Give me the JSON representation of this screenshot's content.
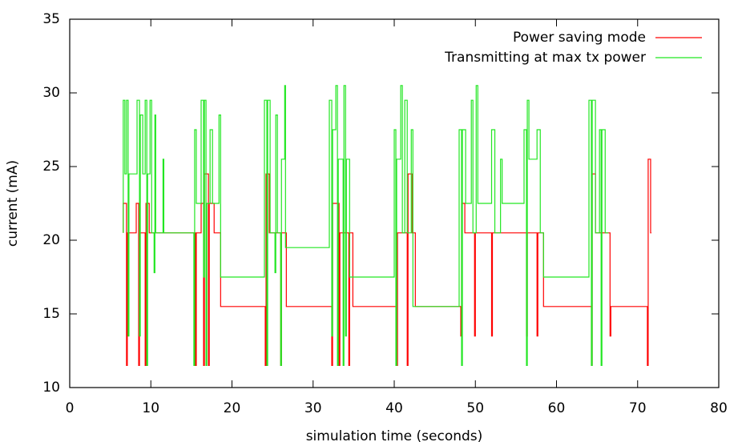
{
  "chart_data": {
    "type": "line",
    "x_label": "simulation time (seconds)",
    "y_label": "current (mA)",
    "xlim": [
      0,
      80
    ],
    "xticks": [
      0,
      10,
      20,
      30,
      40,
      50,
      60,
      70,
      80
    ],
    "ylim": [
      10,
      35
    ],
    "yticks": [
      10,
      15,
      20,
      25,
      30,
      35
    ],
    "legend": "upper right",
    "steps": true,
    "series": [
      {
        "name": "Power saving mode",
        "color": "#ff0000",
        "x": [
          6.6,
          6.6,
          7.0,
          7.0,
          7.1,
          7.1,
          8.2,
          8.2,
          8.5,
          8.5,
          8.6,
          8.6,
          9.3,
          9.3,
          9.4,
          9.4,
          9.8,
          9.8,
          15.5,
          15.5,
          15.6,
          15.6,
          16.2,
          16.2,
          16.5,
          16.5,
          16.6,
          16.6,
          17.1,
          17.1,
          17.2,
          17.2,
          17.8,
          17.8,
          18.6,
          18.6,
          24.1,
          24.1,
          24.2,
          24.2,
          24.6,
          24.6,
          26.0,
          26.0,
          26.1,
          26.1,
          26.7,
          26.7,
          32.3,
          32.3,
          32.4,
          32.4,
          33.2,
          33.2,
          33.3,
          33.3,
          34.4,
          34.4,
          34.5,
          34.5,
          34.9,
          34.9,
          40.3,
          40.3,
          40.4,
          40.4,
          41.6,
          41.6,
          41.7,
          41.7,
          42.2,
          42.2,
          42.6,
          42.6,
          48.2,
          48.2,
          48.3,
          48.3,
          48.7,
          48.7,
          49.9,
          49.9,
          50.0,
          50.0,
          52.0,
          52.0,
          52.1,
          52.1,
          56.3,
          56.3,
          56.4,
          56.4,
          57.6,
          57.6,
          57.7,
          57.7,
          58.4,
          58.4,
          64.3,
          64.3,
          64.4,
          64.4,
          64.8,
          64.8,
          66.6,
          66.6,
          66.7,
          66.7,
          71.2,
          71.2,
          71.3,
          71.3,
          71.6,
          71.6,
          71.7
        ],
        "values": [
          20.5,
          22.5,
          22.5,
          11.5,
          11.5,
          20.5,
          20.5,
          22.5,
          22.5,
          11.5,
          11.5,
          20.5,
          20.5,
          11.5,
          11.5,
          22.5,
          22.5,
          20.5,
          20.5,
          11.5,
          11.5,
          20.5,
          20.5,
          22.5,
          22.5,
          11.5,
          11.5,
          24.5,
          24.5,
          11.5,
          11.5,
          22.5,
          22.5,
          20.5,
          20.5,
          15.5,
          15.5,
          11.5,
          11.5,
          24.5,
          24.5,
          20.5,
          20.5,
          11.5,
          11.5,
          20.5,
          20.5,
          15.5,
          15.5,
          11.5,
          11.5,
          22.5,
          22.5,
          11.5,
          11.5,
          20.5,
          20.5,
          11.5,
          11.5,
          20.5,
          20.5,
          15.5,
          15.5,
          11.5,
          11.5,
          20.5,
          20.5,
          11.5,
          11.5,
          24.5,
          24.5,
          20.5,
          20.5,
          15.5,
          15.5,
          13.5,
          13.5,
          22.5,
          22.5,
          20.5,
          20.5,
          13.5,
          13.5,
          20.5,
          20.5,
          13.5,
          13.5,
          20.5,
          20.5,
          13.5,
          13.5,
          20.5,
          20.5,
          13.5,
          13.5,
          20.5,
          20.5,
          15.5,
          15.5,
          11.5,
          11.5,
          24.5,
          24.5,
          20.5,
          20.5,
          13.5,
          13.5,
          15.5,
          15.5,
          11.5,
          11.5,
          25.5,
          25.5,
          20.5,
          20.5
        ]
      },
      {
        "name": "Transmitting at max tx power",
        "color": "#22e622",
        "x": [
          6.6,
          6.6,
          6.8,
          6.8,
          7.0,
          7.0,
          7.2,
          7.2,
          7.3,
          7.3,
          8.3,
          8.3,
          8.6,
          8.6,
          8.7,
          8.7,
          9.0,
          9.0,
          9.3,
          9.3,
          9.5,
          9.5,
          9.6,
          9.6,
          9.9,
          9.9,
          10.1,
          10.1,
          10.4,
          10.4,
          10.5,
          10.5,
          10.6,
          10.6,
          11.5,
          11.5,
          11.6,
          11.6,
          15.3,
          15.3,
          15.4,
          15.4,
          15.6,
          15.6,
          16.2,
          16.2,
          16.5,
          16.5,
          16.6,
          16.6,
          16.8,
          16.8,
          16.9,
          16.9,
          17.3,
          17.3,
          17.6,
          17.6,
          18.4,
          18.4,
          18.6,
          18.6,
          24.0,
          24.0,
          24.3,
          24.3,
          24.4,
          24.4,
          24.7,
          24.7,
          25.3,
          25.3,
          25.4,
          25.4,
          25.6,
          25.6,
          26.0,
          26.0,
          26.1,
          26.1,
          26.5,
          26.5,
          26.6,
          26.6,
          32.0,
          32.0,
          32.3,
          32.3,
          32.4,
          32.4,
          32.8,
          32.8,
          33.0,
          33.0,
          33.1,
          33.1,
          33.7,
          33.7,
          33.8,
          33.8,
          34.0,
          34.0,
          34.1,
          34.1,
          34.5,
          34.5,
          40.0,
          40.0,
          40.2,
          40.2,
          40.3,
          40.3,
          40.8,
          40.8,
          41.0,
          41.0,
          41.3,
          41.3,
          41.6,
          41.6,
          42.1,
          42.1,
          42.3,
          42.3,
          48.0,
          48.0,
          48.3,
          48.3,
          48.4,
          48.4,
          48.8,
          48.8,
          49.5,
          49.5,
          49.7,
          49.7,
          50.1,
          50.1,
          50.3,
          50.3,
          52.0,
          52.0,
          52.4,
          52.4,
          53.1,
          53.1,
          53.3,
          53.3,
          56.0,
          56.0,
          56.3,
          56.3,
          56.4,
          56.4,
          56.6,
          56.6,
          57.6,
          57.6,
          58.0,
          58.0,
          58.4,
          58.4,
          64.0,
          64.0,
          64.3,
          64.3,
          64.4,
          64.4,
          64.8,
          64.8,
          65.3,
          65.3,
          65.5,
          65.5,
          65.6,
          65.6,
          66.0,
          66.0,
          66.4
        ],
        "values": [
          20.5,
          29.5,
          29.5,
          24.5,
          24.5,
          29.5,
          29.5,
          13.5,
          13.5,
          24.5,
          24.5,
          29.5,
          29.5,
          13.5,
          13.5,
          28.5,
          28.5,
          24.5,
          24.5,
          29.5,
          29.5,
          11.5,
          11.5,
          24.5,
          24.5,
          29.5,
          29.5,
          20.5,
          20.5,
          17.8,
          17.8,
          28.5,
          28.5,
          20.5,
          20.5,
          25.5,
          25.5,
          20.5,
          20.5,
          11.5,
          11.5,
          27.5,
          27.5,
          22.5,
          22.5,
          29.5,
          29.5,
          17.5,
          17.5,
          29.5,
          29.5,
          11.5,
          11.5,
          22.5,
          22.5,
          27.5,
          27.5,
          22.5,
          22.5,
          28.5,
          28.5,
          17.5,
          17.5,
          29.5,
          29.5,
          11.5,
          11.5,
          29.5,
          29.5,
          20.5,
          20.5,
          17.8,
          17.8,
          28.5,
          28.5,
          20.5,
          20.5,
          11.5,
          11.5,
          25.5,
          25.5,
          30.5,
          30.5,
          19.5,
          19.5,
          29.5,
          29.5,
          13.5,
          13.5,
          27.5,
          27.5,
          30.5,
          30.5,
          11.5,
          11.5,
          25.5,
          25.5,
          11.5,
          11.5,
          30.5,
          30.5,
          13.5,
          13.5,
          25.5,
          25.5,
          17.5,
          17.5,
          27.5,
          27.5,
          11.5,
          11.5,
          25.5,
          25.5,
          30.5,
          30.5,
          20.5,
          20.5,
          29.5,
          29.5,
          20.5,
          20.5,
          27.5,
          27.5,
          15.5,
          15.5,
          27.5,
          27.5,
          11.5,
          11.5,
          27.5,
          27.5,
          22.5,
          22.5,
          29.5,
          29.5,
          20.5,
          20.5,
          30.5,
          30.5,
          22.5,
          22.5,
          27.5,
          27.5,
          20.5,
          20.5,
          25.5,
          25.5,
          22.5,
          22.5,
          27.5,
          27.5,
          11.5,
          11.5,
          29.5,
          29.5,
          25.5,
          25.5,
          27.5,
          27.5,
          20.5,
          20.5,
          17.5,
          17.5,
          29.5,
          29.5,
          11.5,
          11.5,
          29.5,
          29.5,
          20.5,
          20.5,
          27.5,
          27.5,
          11.5,
          11.5,
          27.5,
          27.5,
          20.5,
          20.5
        ]
      }
    ]
  }
}
